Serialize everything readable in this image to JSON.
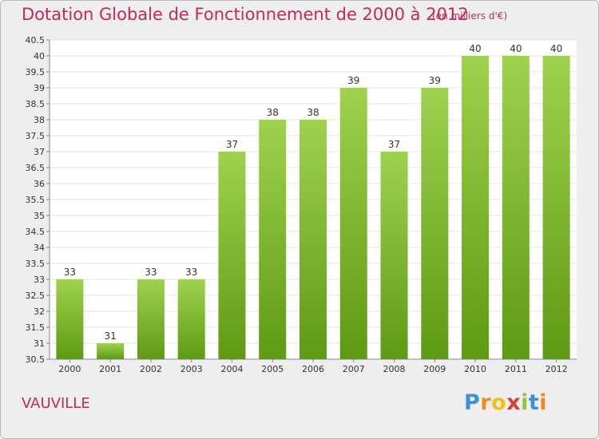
{
  "header": {
    "title": "Dotation Globale de Fonctionnement de 2000 à 2012",
    "unit": "(en milliers d'€)"
  },
  "footer": {
    "commune": "VAUVILLE",
    "logo": [
      "P",
      "r",
      "o",
      "x",
      "i",
      "t",
      "i"
    ]
  },
  "colors": {
    "title": "#c1295a",
    "bar_top": "#9fd24e",
    "bar_bottom": "#5e9a12",
    "background": "#eeeeee"
  },
  "chart_data": {
    "type": "bar",
    "title": "Dotation Globale de Fonctionnement de 2000 à 2012",
    "subtitle": "(en milliers d'€)",
    "categories": [
      "2000",
      "2001",
      "2002",
      "2003",
      "2004",
      "2005",
      "2006",
      "2007",
      "2008",
      "2009",
      "2010",
      "2011",
      "2012"
    ],
    "values": [
      33,
      31,
      33,
      33,
      37,
      38,
      38,
      39,
      37,
      39,
      40,
      40,
      40
    ],
    "ylim": [
      30.5,
      40.5
    ],
    "yticks": [
      "30.5",
      "31",
      "31.5",
      "32",
      "32.5",
      "33",
      "33.5",
      "34",
      "34.5",
      "35",
      "35.5",
      "36",
      "36.5",
      "37",
      "37.5",
      "38",
      "38.5",
      "39",
      "39.5",
      "40",
      "40.5"
    ],
    "grid": true,
    "legend": "none"
  }
}
